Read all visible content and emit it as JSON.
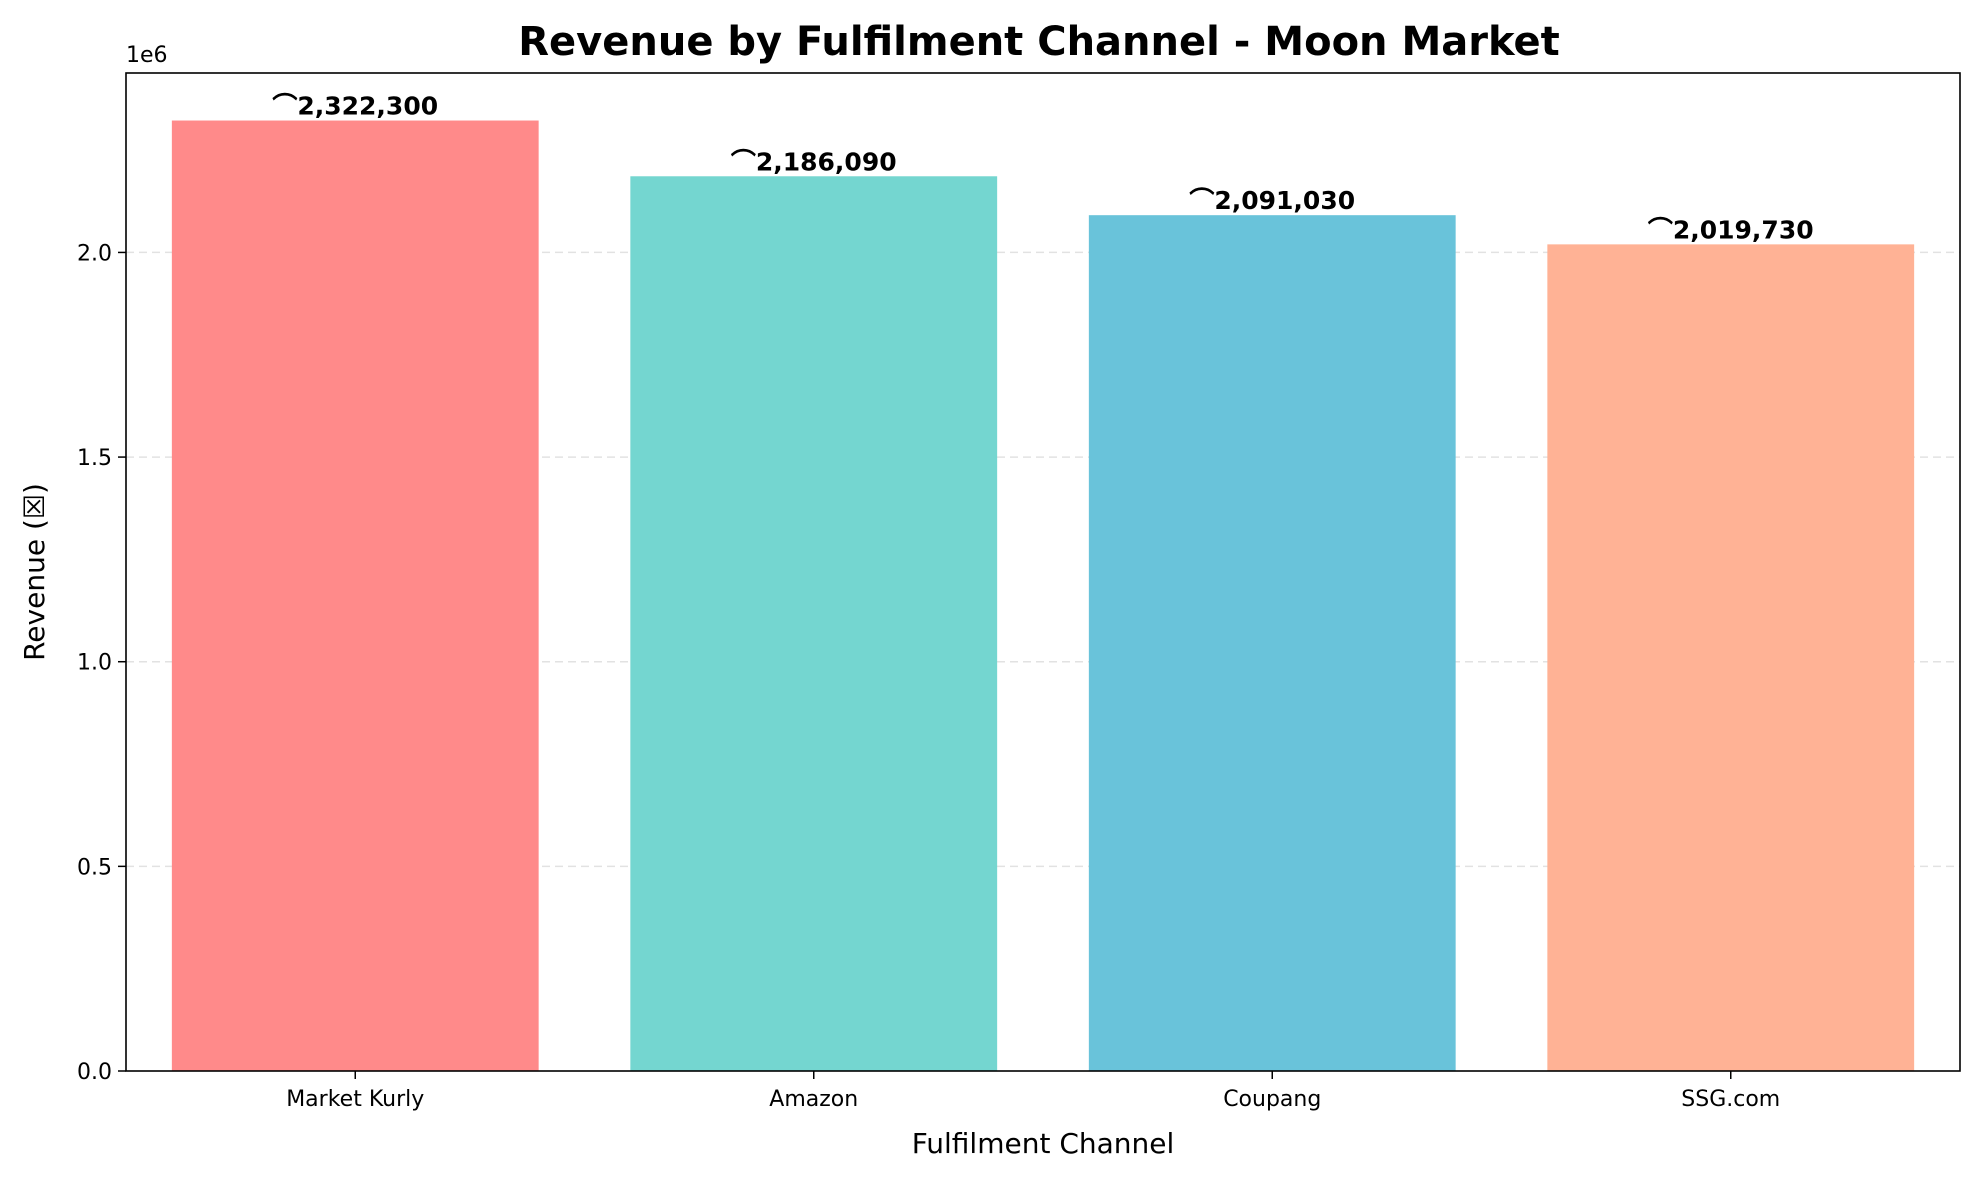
{
  "chart_data": {
    "type": "bar",
    "title": "Revenue by Fulfilment Channel - Moon Market",
    "xlabel": "Fulfilment Channel",
    "ylabel": "Revenue (☒)",
    "y_offset_label": "1e6",
    "categories": [
      "Market Kurly",
      "Amazon",
      "Coupang",
      "SSG.com"
    ],
    "values": [
      2322300,
      2186090,
      2091030,
      2019730
    ],
    "value_labels": [
      "⌒2,322,300",
      "⌒2,186,090",
      "⌒2,091,030",
      "⌒2,019,730"
    ],
    "colors": [
      "#ff8a8a",
      "#74d6d0",
      "#69c3da",
      "#ffb295"
    ],
    "ylim": [
      0,
      2438415
    ],
    "yticks": [
      0,
      500000,
      1000000,
      1500000,
      2000000
    ],
    "ytick_labels": [
      "0.0",
      "0.5",
      "1.0",
      "1.5",
      "2.0"
    ],
    "grid": "y-dashed",
    "legend": "none"
  }
}
